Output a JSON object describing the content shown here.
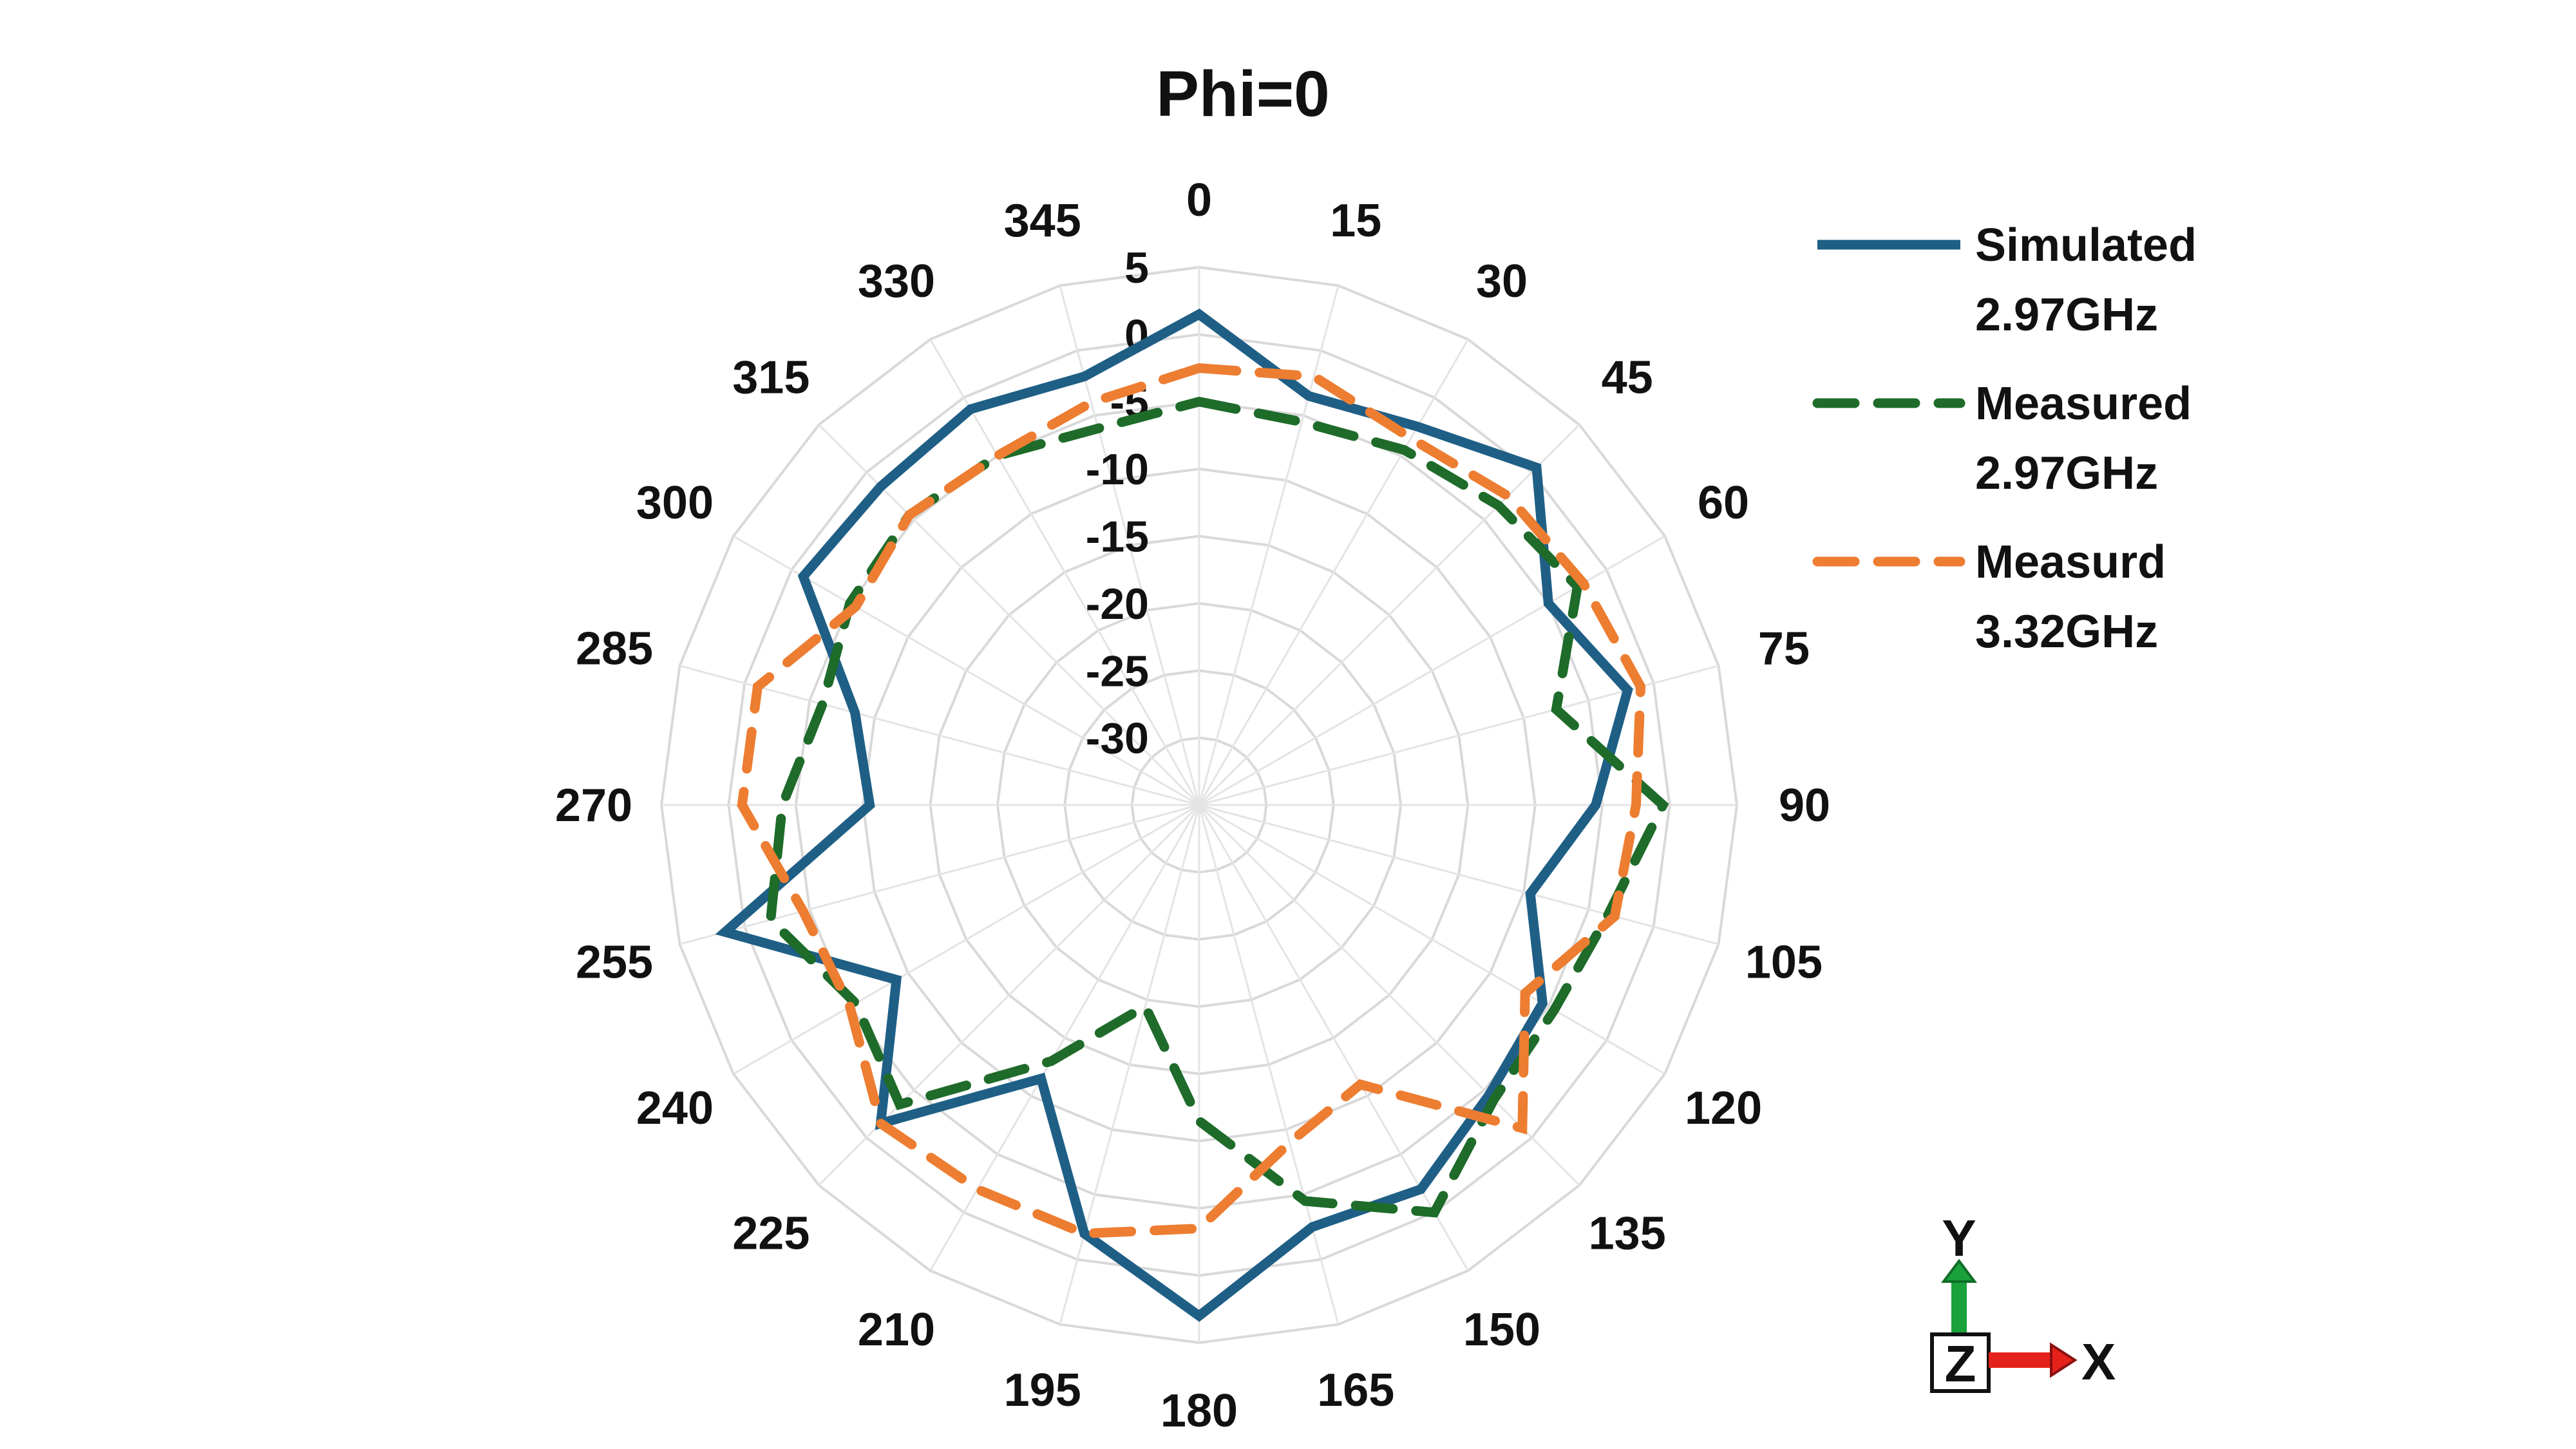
{
  "chart_data": {
    "type": "radar",
    "title": "Phi=0",
    "angles": [
      0,
      15,
      30,
      45,
      60,
      75,
      90,
      105,
      120,
      135,
      150,
      165,
      180,
      195,
      210,
      225,
      240,
      255,
      270,
      285,
      300,
      315,
      330,
      345
    ],
    "angle_labels": [
      "0",
      "15",
      "30",
      "45",
      "60",
      "75",
      "90",
      "105",
      "120",
      "135",
      "150",
      "165",
      "180",
      "195",
      "210",
      "225",
      "240",
      "255",
      "270",
      "285",
      "300",
      "315",
      "330",
      "345"
    ],
    "r_ticks": [
      5,
      0,
      -5,
      -10,
      -15,
      -20,
      -25,
      -30
    ],
    "r_tick_labels": [
      "5",
      "0",
      "-5",
      "-10",
      "-15",
      "-20",
      "-25",
      "-30"
    ],
    "rlim": [
      -35,
      5
    ],
    "grid": true,
    "legend_position": "top-right",
    "series": [
      {
        "name": "Simulated 2.97GHz",
        "legend_lines": [
          "Simulated",
          "2.97GHz"
        ],
        "color": "#1f5f86",
        "style": "solid",
        "values": [
          1.5,
          -3.5,
          -2.5,
          0.5,
          -5.0,
          -2.0,
          -5.5,
          -9.5,
          -5.5,
          -4.5,
          -2.0,
          -2.5,
          3.0,
          -2.0,
          -11.5,
          -1.5,
          -9.0,
          1.5,
          -10.5,
          -8.5,
          -1.0,
          -1.5,
          -1.0,
          -2.0
        ]
      },
      {
        "name": "Measured 2.97GHz",
        "legend_lines": [
          "Measured",
          "2.97GHz"
        ],
        "color": "#1e6b2a",
        "style": "dashed",
        "values": [
          -5.0,
          -5.5,
          -4.5,
          -3.5,
          -2.5,
          -7.5,
          -0.5,
          -3.5,
          -4.5,
          -4.0,
          0.0,
          -4.5,
          -11.5,
          -19.5,
          -13.0,
          -3.5,
          -5.5,
          -2.0,
          -4.0,
          -6.0,
          -5.0,
          -4.5,
          -5.0,
          -6.0
        ]
      },
      {
        "name": "Measurd 3.32GHz",
        "legend_lines": [
          "Measurd",
          "3.32GHz"
        ],
        "color": "#ed7d31",
        "style": "dashed",
        "values": [
          -2.5,
          -2.0,
          -3.5,
          -2.5,
          -2.0,
          -1.0,
          -2.5,
          -3.0,
          -7.0,
          -1.0,
          -11.0,
          -9.0,
          -3.5,
          -2.0,
          -2.0,
          -1.5,
          -5.0,
          -4.5,
          -1.0,
          -1.0,
          -5.5,
          -4.5,
          -5.0,
          -4.0
        ]
      }
    ]
  },
  "axis_indicator": {
    "y_label": "Y",
    "x_label": "X",
    "z_label": "Z",
    "y_color": "#1aa13c",
    "x_color": "#e5211b"
  }
}
